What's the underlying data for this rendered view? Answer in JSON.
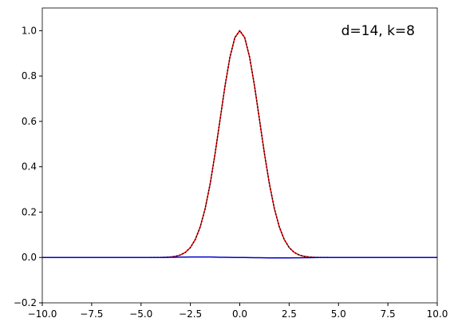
{
  "chart_data": {
    "type": "line",
    "annotation": "d=14, k=8",
    "x": [
      -10,
      -8,
      -6,
      -5,
      -4,
      -3.75,
      -3.5,
      -3.25,
      -3,
      -2.75,
      -2.5,
      -2.25,
      -2,
      -1.75,
      -1.5,
      -1.25,
      -1,
      -0.75,
      -0.5,
      -0.25,
      0,
      0.25,
      0.5,
      0.75,
      1,
      1.25,
      1.5,
      1.75,
      2,
      2.25,
      2.5,
      2.75,
      3,
      3.25,
      3.5,
      3.75,
      4,
      5,
      6,
      8,
      10
    ],
    "series": [
      {
        "color": "#ff0000",
        "style": "solid",
        "values": [
          0,
          0,
          0,
          0,
          0.0003,
          0.0009,
          0.0022,
          0.0051,
          0.0111,
          0.0228,
          0.0439,
          0.0796,
          0.1353,
          0.2163,
          0.3247,
          0.4578,
          0.6065,
          0.7548,
          0.8825,
          0.9692,
          1,
          0.9692,
          0.8825,
          0.7548,
          0.6065,
          0.4578,
          0.3247,
          0.2163,
          0.1353,
          0.0796,
          0.0439,
          0.0228,
          0.0111,
          0.0051,
          0.0022,
          0.0009,
          0.0003,
          0,
          0,
          0,
          0
        ]
      },
      {
        "color": "#000000",
        "style": "dotted",
        "values": [
          0,
          0,
          0,
          0,
          0.0003,
          0.0009,
          0.0022,
          0.0051,
          0.0111,
          0.0228,
          0.0439,
          0.0796,
          0.1353,
          0.2163,
          0.3247,
          0.4578,
          0.6065,
          0.7548,
          0.8825,
          0.9692,
          1,
          0.9692,
          0.8825,
          0.7548,
          0.6065,
          0.4578,
          0.3247,
          0.2163,
          0.1353,
          0.0796,
          0.0439,
          0.0228,
          0.0111,
          0.0051,
          0.0022,
          0.0009,
          0.0003,
          0,
          0,
          0,
          0
        ]
      },
      {
        "color": "#0000cc",
        "style": "solid",
        "values": [
          0,
          0,
          0,
          0,
          0,
          0.0005,
          0.001,
          0.001,
          0.0015,
          0.0015,
          0.002,
          0.002,
          0.002,
          0.002,
          0.002,
          0.0015,
          0.001,
          0.001,
          0.0005,
          0,
          0,
          0,
          -0.0005,
          -0.001,
          -0.001,
          -0.0015,
          -0.002,
          -0.002,
          -0.002,
          -0.002,
          -0.002,
          -0.0015,
          -0.0015,
          -0.001,
          -0.001,
          -0.0005,
          0,
          0,
          0,
          0,
          0
        ]
      }
    ],
    "xlim": [
      -10,
      10
    ],
    "ylim": [
      -0.2,
      1.1
    ],
    "xticks": [
      {
        "value": -10,
        "label": "−10.0"
      },
      {
        "value": -7.5,
        "label": "−7.5"
      },
      {
        "value": -5,
        "label": "−5.0"
      },
      {
        "value": -2.5,
        "label": "−2.5"
      },
      {
        "value": 0,
        "label": "0.0"
      },
      2.5,
      {
        "value": 5,
        "label": "5.0"
      },
      7.5,
      {
        "value": 10,
        "label": "10.0"
      }
    ],
    "yticks": [
      {
        "value": -0.2,
        "label": "−0.2"
      },
      {
        "value": 0,
        "label": "0.0"
      },
      0.2,
      0.4,
      0.6,
      0.8,
      {
        "value": 1,
        "label": "1.0"
      }
    ],
    "grid": false
  }
}
